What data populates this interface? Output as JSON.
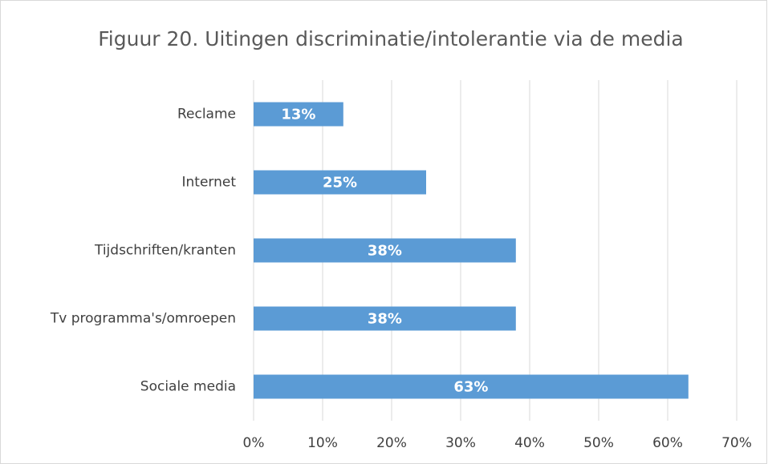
{
  "chart_data": {
    "type": "bar",
    "orientation": "horizontal",
    "title": "Figuur 20.  Uitingen discriminatie/intolerantie via de media",
    "categories": [
      "Reclame",
      "Internet",
      "Tijdschriften/kranten",
      "Tv programma's/omroepen",
      "Sociale media"
    ],
    "values": [
      13,
      25,
      38,
      38,
      63
    ],
    "value_labels": [
      "13%",
      "25%",
      "38%",
      "38%",
      "63%"
    ],
    "color": "#5b9bd5",
    "xlim": [
      0,
      70
    ],
    "xticks": [
      {
        "value": 0,
        "label": "0%"
      },
      {
        "value": 10,
        "label": "10%"
      },
      {
        "value": 20,
        "label": "20%"
      },
      {
        "value": 30,
        "label": "30%"
      },
      {
        "value": 40,
        "label": "40%"
      },
      {
        "value": 50,
        "label": "50%"
      },
      {
        "value": 60,
        "label": "60%"
      },
      {
        "value": 70,
        "label": "70%"
      }
    ],
    "grid": true
  }
}
